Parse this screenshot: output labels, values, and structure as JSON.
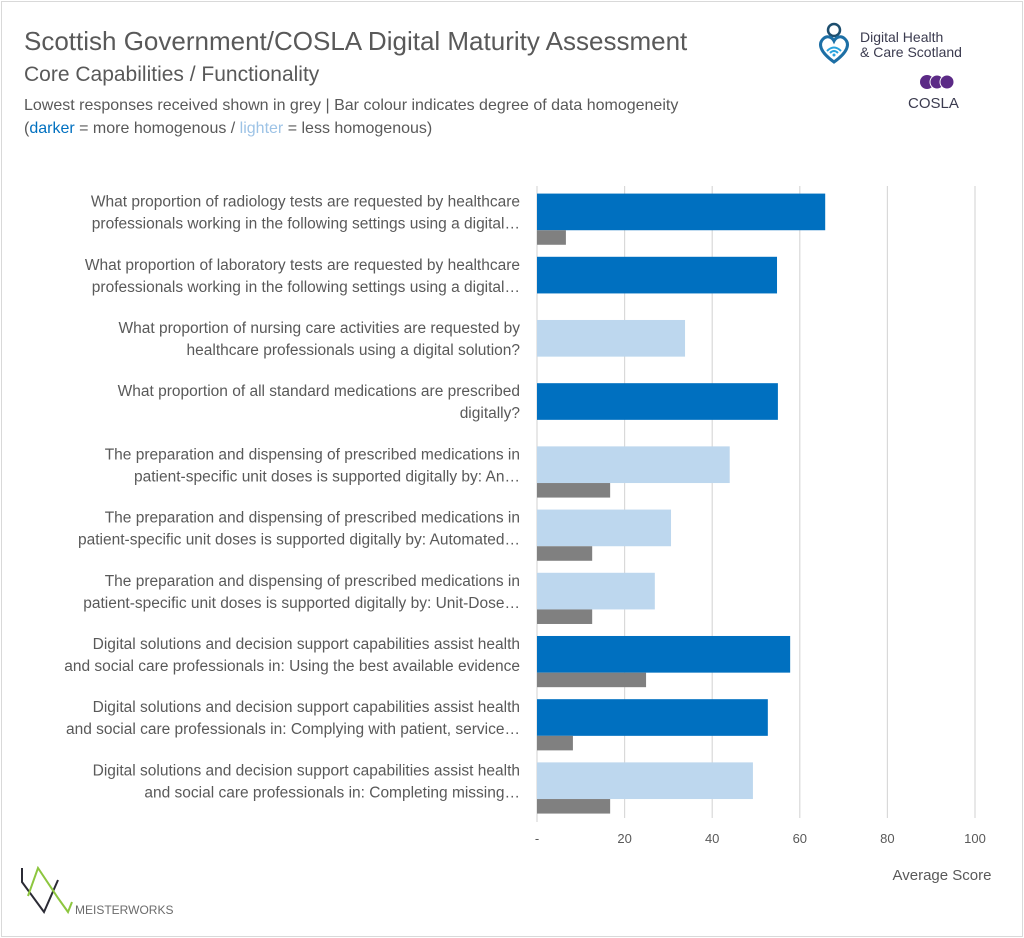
{
  "header": {
    "title": "Scottish Government/COSLA Digital Maturity Assessment",
    "subtitle": "Core Capabilities / Functionality",
    "note_line1": "Lowest responses received shown in grey | Bar colour indicates degree of data homogeneity",
    "note_open": "(",
    "note_dark": "darker",
    "note_mid": " = more homogenous / ",
    "note_light": "lighter",
    "note_close": " = less homogenous)"
  },
  "logos": {
    "dhcs_line1": "Digital Health",
    "dhcs_line2": "& Care Scotland",
    "cosla": "COSLA",
    "meisterworks": "MEISTERWORKS"
  },
  "colors": {
    "dark_bar": "#0070c0",
    "light_bar": "#bdd7ee",
    "grey_bar": "#808080",
    "grid": "#d9d9d9"
  },
  "chart_data": {
    "type": "bar",
    "orientation": "horizontal",
    "title": "Core Capabilities / Functionality",
    "xlabel": "Average Score",
    "ylabel": "",
    "xlim": [
      0,
      100
    ],
    "xticks": [
      "-",
      "20",
      "40",
      "60",
      "80",
      "100"
    ],
    "grid": true,
    "categories": [
      [
        "What proportion of radiology tests are requested by healthcare",
        "professionals working in the following settings using a digital…"
      ],
      [
        "What proportion of laboratory tests are requested by healthcare",
        "professionals working in the following settings using a digital…"
      ],
      [
        "What proportion of nursing care activities are requested by",
        "healthcare professionals using a digital solution?"
      ],
      [
        "What proportion of all standard medications are prescribed",
        "digitally?"
      ],
      [
        "The preparation and dispensing of prescribed medications in",
        "patient-specific unit doses is supported digitally by: An…"
      ],
      [
        "The preparation and dispensing of prescribed medications in",
        "patient-specific unit doses is supported digitally by: Automated…"
      ],
      [
        "The preparation and dispensing of prescribed medications in",
        "patient-specific unit doses is supported digitally by: Unit-Dose…"
      ],
      [
        "Digital solutions and decision support capabilities assist health",
        "and social care professionals in: Using the best available evidence"
      ],
      [
        "Digital solutions and decision support capabilities assist health",
        "and social care professionals in: Complying with patient, service…"
      ],
      [
        "Digital solutions and decision support capabilities assist health",
        "and social care professionals in: Completing missing…"
      ]
    ],
    "series": [
      {
        "name": "Average Score",
        "values": [
          65.8,
          54.8,
          33.8,
          55.0,
          44.0,
          30.6,
          26.9,
          57.8,
          52.7,
          49.3
        ],
        "homogeneity": [
          "darker",
          "darker",
          "lighter",
          "darker",
          "lighter",
          "lighter",
          "lighter",
          "darker",
          "darker",
          "lighter"
        ]
      },
      {
        "name": "Lowest response",
        "values": [
          6.6,
          null,
          null,
          null,
          16.7,
          12.6,
          12.6,
          24.9,
          8.2,
          16.7
        ]
      }
    ]
  }
}
